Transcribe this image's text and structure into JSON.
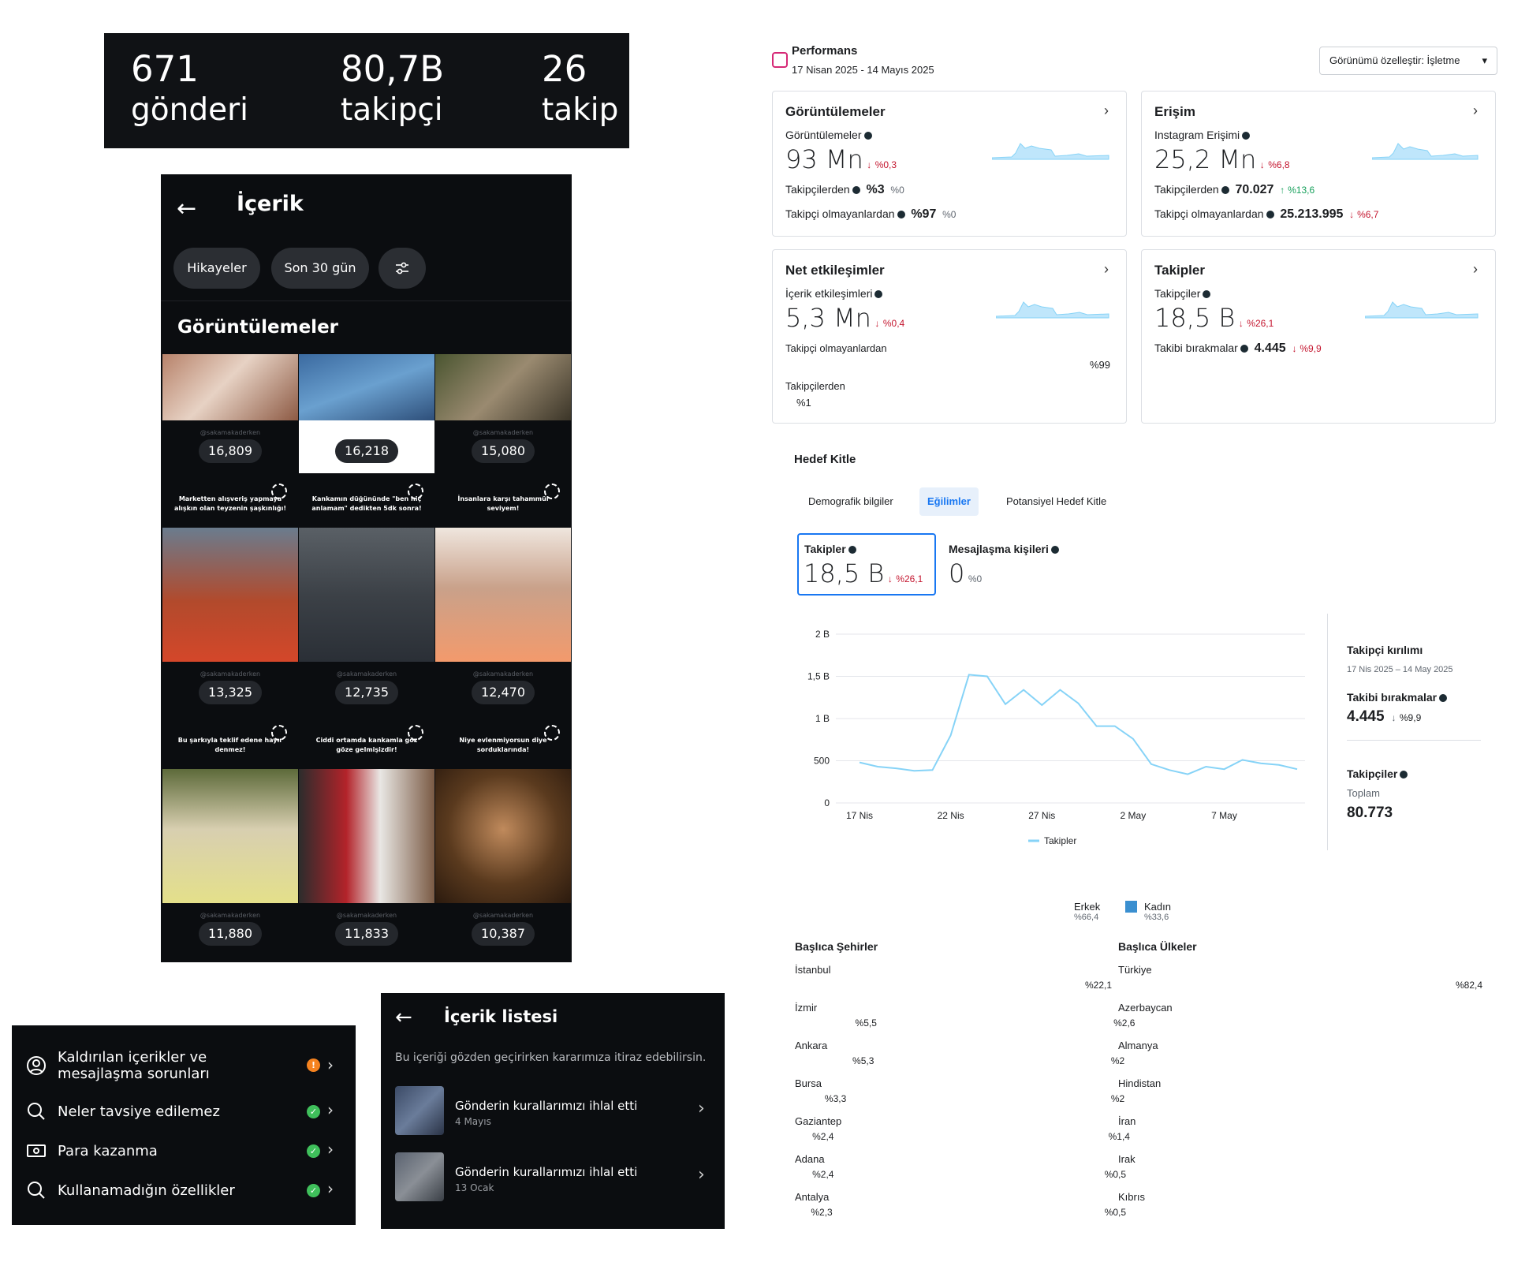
{
  "profile_stats": [
    {
      "value": "671",
      "label": "gönderi"
    },
    {
      "value": "80,7B",
      "label": "takipçi"
    },
    {
      "value": "26",
      "label": "takip"
    }
  ],
  "content_panel": {
    "back": "←",
    "title": "İçerik",
    "chips": [
      "Hikayeler",
      "Son 30 gün"
    ],
    "section_title": "Görüntülemeler",
    "handle": "@sakamakaderken",
    "tiles": [
      {
        "count": "16,809",
        "caption": ""
      },
      {
        "count": "16,218",
        "caption": ""
      },
      {
        "count": "15,080",
        "caption": ""
      },
      {
        "count": "13,325",
        "caption": "Marketten alışveriş yapmaya alışkın olan teyzenin şaşkınlığı!"
      },
      {
        "count": "12,735",
        "caption": "Kankamın düğününde \"ben hiç anlamam\" dedikten 5dk sonra!"
      },
      {
        "count": "12,470",
        "caption": "İnsanlara karşı tahammül seviyem!"
      },
      {
        "count": "11,880",
        "caption": "Bu şarkıyla teklif edene hayır denmez!"
      },
      {
        "count": "11,833",
        "caption": "Ciddi ortamda kankamla göz göze gelmişizdir!"
      },
      {
        "count": "10,387",
        "caption": "Niye evlenmiyorsun diye sorduklarında!"
      }
    ]
  },
  "moderation_list": [
    {
      "label": "Kaldırılan içerikler ve mesajlaşma sorunları",
      "icon": "user-circle-icon",
      "status": "warning"
    },
    {
      "label": "Neler tavsiye edilemez",
      "icon": "search-icon",
      "status": "ok"
    },
    {
      "label": "Para kazanma",
      "icon": "money-icon",
      "status": "ok"
    },
    {
      "label": "Kullanamadığın özellikler",
      "icon": "search-icon",
      "status": "ok"
    }
  ],
  "content_list": {
    "title": "İçerik listesi",
    "description": "Bu içeriği gözden geçirirken kararımıza itiraz edebilirsin.",
    "items": [
      {
        "title": "Gönderin kurallarımızı ihlal etti",
        "date": "4 Mayıs"
      },
      {
        "title": "Gönderin kurallarımızı ihlal etti",
        "date": "13 Ocak"
      }
    ]
  },
  "performance": {
    "title": "Performans",
    "date_range": "17 Nisan 2025 - 14 Mayıs 2025",
    "customize_button": "Görünümü özelleştir: İşletme",
    "cards": {
      "views": {
        "heading": "Görüntülemeler",
        "sub": "Görüntülemeler",
        "value": "93 Mn",
        "change": "%0,3",
        "row1_label": "Takipçilerden",
        "row1_value": "%3",
        "row1_change": "%0",
        "row2_label": "Takipçi olmayanlardan",
        "row2_value": "%97",
        "row2_change": "%0"
      },
      "reach": {
        "heading": "Erişim",
        "sub": "Instagram Erişimi",
        "value": "25,2 Mn",
        "change": "%6,8",
        "row1_label": "Takipçilerden",
        "row1_value": "70.027",
        "row1_change": "%13,6",
        "row2_label": "Takipçi olmayanlardan",
        "row2_value": "25.213.995",
        "row2_change": "%6,7"
      },
      "interactions": {
        "heading": "Net etkileşimler",
        "sub": "İçerik etkileşimleri",
        "value": "5,3 Mn",
        "change": "%0,4",
        "row1_label": "Takipçi olmayanlardan",
        "row1_value": "%99",
        "row2_label": "Takipçilerden",
        "row2_value": "%1"
      },
      "followers": {
        "heading": "Takipler",
        "sub": "Takipçiler",
        "value": "18,5 B",
        "change": "%26,1",
        "row1_label": "Takibi bırakmalar",
        "row1_value": "4.445",
        "row1_change": "%9,9"
      }
    }
  },
  "audience": {
    "title": "Hedef Kitle",
    "tabs": [
      "Demografik bilgiler",
      "Eğilimler",
      "Potansiyel Hedef Kitle"
    ],
    "active_tab": "Eğilimler",
    "metric1": {
      "label": "Takipler",
      "value": "18,5 B",
      "change": "%26,1"
    },
    "metric2": {
      "label": "Mesajlaşma kişileri",
      "value": "0",
      "change": "%0"
    },
    "side": {
      "title": "Takipçi kırılımı",
      "range": "17 Nis 2025 – 14 May 2025",
      "unfollow_label": "Takibi bırakmalar",
      "unfollow_value": "4.445",
      "unfollow_change": "%9,9",
      "followers_label": "Takipçiler",
      "followers_sub": "Toplam",
      "followers_value": "80.773"
    },
    "gender": [
      {
        "label": "Erkek",
        "value": "%66,4"
      },
      {
        "label": "Kadın",
        "value": "%33,6"
      }
    ],
    "cities_title": "Başlıca Şehirler",
    "cities": [
      {
        "name": "İstanbul",
        "pct": "%22,1",
        "v": 22.1
      },
      {
        "name": "İzmir",
        "pct": "%5,5",
        "v": 5.5
      },
      {
        "name": "Ankara",
        "pct": "%5,3",
        "v": 5.3
      },
      {
        "name": "Bursa",
        "pct": "%3,3",
        "v": 3.3
      },
      {
        "name": "Gaziantep",
        "pct": "%2,4",
        "v": 2.4
      },
      {
        "name": "Adana",
        "pct": "%2,4",
        "v": 2.4
      },
      {
        "name": "Antalya",
        "pct": "%2,3",
        "v": 2.3
      }
    ],
    "countries_title": "Başlıca Ülkeler",
    "countries": [
      {
        "name": "Türkiye",
        "pct": "%82,4",
        "v": 82.4
      },
      {
        "name": "Azerbaycan",
        "pct": "%2,6",
        "v": 2.6
      },
      {
        "name": "Almanya",
        "pct": "%2",
        "v": 2
      },
      {
        "name": "Hindistan",
        "pct": "%2",
        "v": 2
      },
      {
        "name": "İran",
        "pct": "%1,4",
        "v": 1.4
      },
      {
        "name": "Irak",
        "pct": "%0,5",
        "v": 0.5
      },
      {
        "name": "Kıbrıs",
        "pct": "%0,5",
        "v": 0.5
      }
    ]
  },
  "colors": {
    "accent": "#1877f2",
    "chart_line": "#86d3f7",
    "down": "#c4162f",
    "up": "#16a05b",
    "warning": "#f5821f",
    "ok": "#3fbf5b",
    "kadin": "#3a8fd0"
  },
  "chart_data": {
    "type": "line",
    "x": [
      "17 Nis",
      "18 Nis",
      "19 Nis",
      "20 Nis",
      "21 Nis",
      "22 Nis",
      "23 Nis",
      "24 Nis",
      "25 Nis",
      "26 Nis",
      "27 Nis",
      "28 Nis",
      "29 Nis",
      "30 Nis",
      "1 May",
      "2 May",
      "3 May",
      "4 May",
      "5 May",
      "6 May",
      "7 May",
      "8 May",
      "9 May",
      "10 May",
      "11 May"
    ],
    "x_ticks": [
      "17 Nis",
      "22 Nis",
      "27 Nis",
      "2 May",
      "7 May"
    ],
    "series": [
      {
        "name": "Takipler",
        "values": [
          480,
          430,
          410,
          380,
          390,
          800,
          1520,
          1500,
          1170,
          1340,
          1160,
          1340,
          1180,
          910,
          910,
          760,
          460,
          390,
          340,
          430,
          400,
          510,
          470,
          450,
          400
        ]
      }
    ],
    "y_ticks": [
      "2 B",
      "1,5 B",
      "1 B",
      "500",
      "0"
    ],
    "ylim": [
      0,
      2000
    ],
    "legend_position": "bottom"
  }
}
